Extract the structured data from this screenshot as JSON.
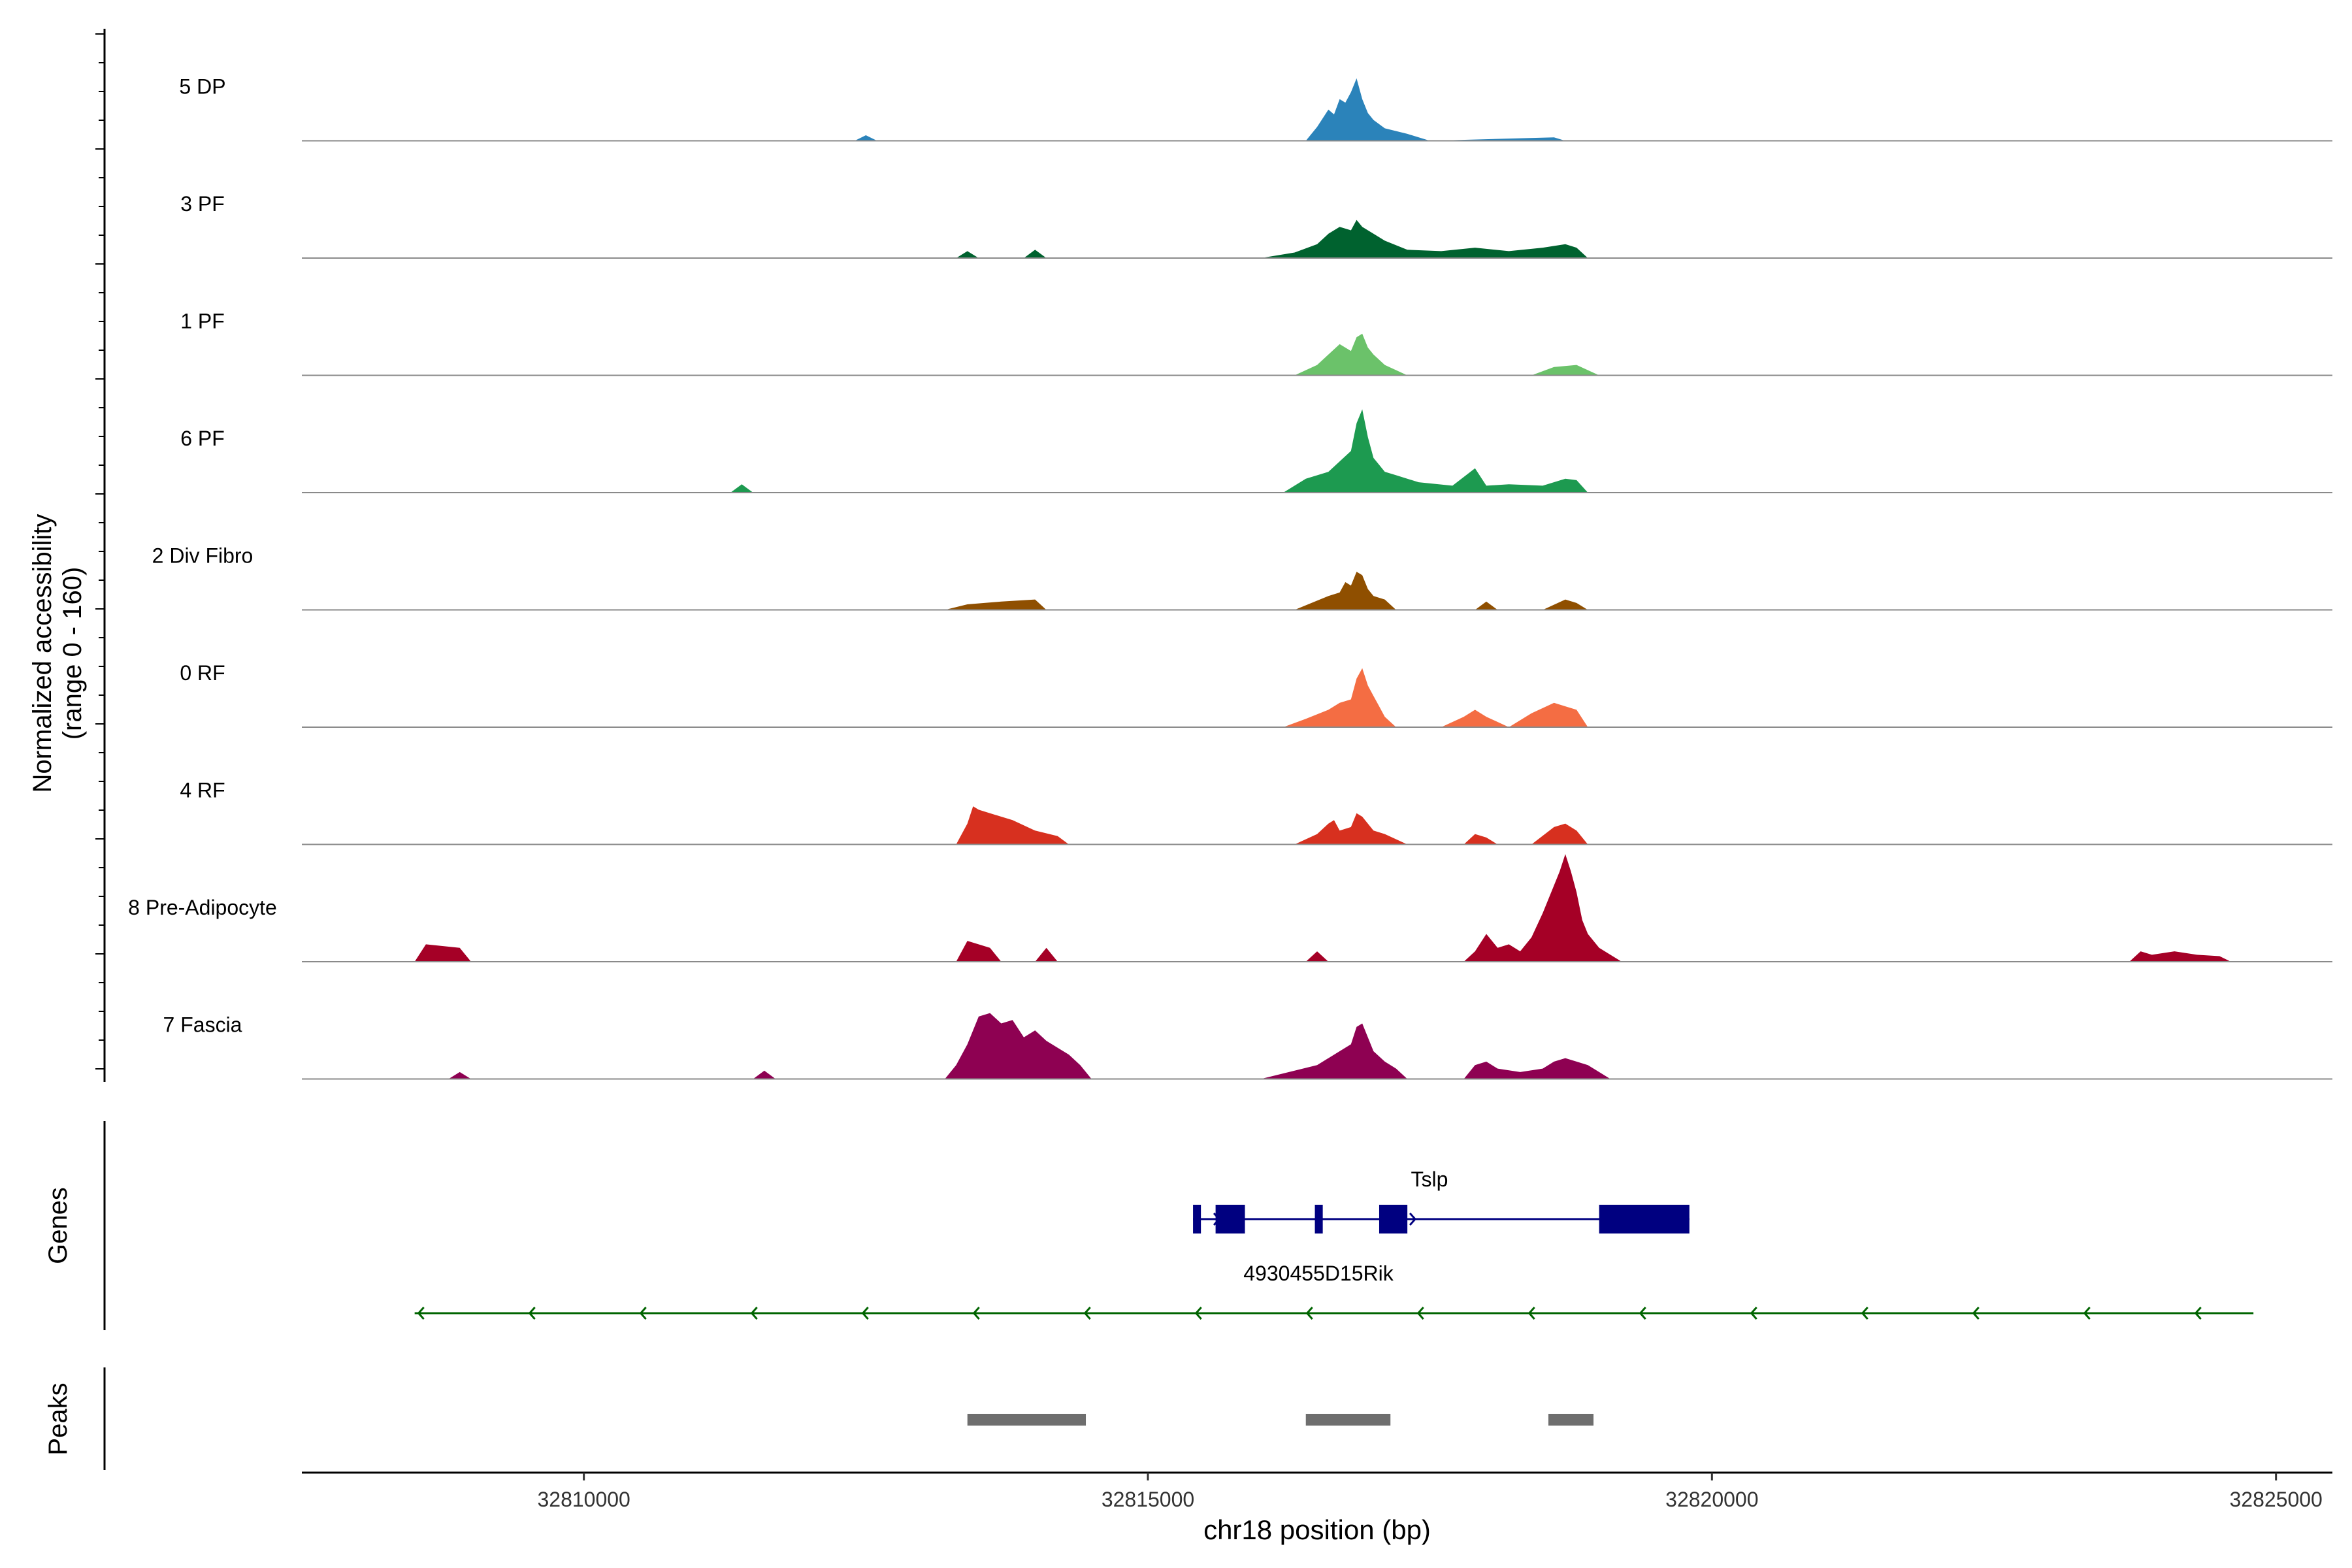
{
  "chart_data": {
    "type": "area",
    "panels": [
      "coverage",
      "genes",
      "peaks"
    ],
    "xlabel": "chr18 position (bp)",
    "xlim": [
      32807500,
      32825500
    ],
    "xticks": [
      32810000,
      32815000,
      32820000,
      32825000
    ],
    "xtick_labels": [
      "32810000",
      "32815000",
      "32820000",
      "32825000"
    ],
    "ylabel_line1": "Normalized accessibility",
    "ylabel_line2": "(range 0 - 160)",
    "ylim": [
      0,
      160
    ],
    "genes_label": "Genes",
    "peaks_label": "Peaks",
    "series": [
      {
        "name": "5 DP",
        "color": "#2b83ba",
        "x": [
          32812400,
          32812500,
          32812600,
          32816400,
          32816500,
          32816600,
          32816650,
          32816700,
          32816750,
          32816800,
          32816850,
          32816900,
          32816950,
          32817000,
          32817100,
          32817300,
          32817500,
          32818600,
          32818700
        ],
        "y": [
          0,
          8,
          0,
          0,
          20,
          45,
          38,
          60,
          55,
          70,
          90,
          60,
          40,
          30,
          18,
          10,
          0,
          5,
          0
        ]
      },
      {
        "name": "3 PF",
        "color": "#00622f",
        "x": [
          32813300,
          32813400,
          32813500,
          32813900,
          32814000,
          32814100,
          32816000,
          32816300,
          32816500,
          32816600,
          32816700,
          32816800,
          32816850,
          32816900,
          32817000,
          32817100,
          32817300,
          32817600,
          32817900,
          32818200,
          32818500,
          32818700,
          32818800,
          32818900
        ],
        "y": [
          0,
          10,
          0,
          0,
          12,
          0,
          0,
          8,
          20,
          35,
          45,
          40,
          55,
          45,
          35,
          25,
          12,
          10,
          15,
          10,
          15,
          20,
          15,
          0
        ]
      },
      {
        "name": "1 PF",
        "color": "#6bc26a",
        "x": [
          32816300,
          32816500,
          32816600,
          32816700,
          32816750,
          32816800,
          32816850,
          32816900,
          32816950,
          32817000,
          32817100,
          32817300,
          32818400,
          32818600,
          32818800,
          32819000
        ],
        "y": [
          0,
          15,
          30,
          45,
          40,
          35,
          55,
          60,
          40,
          30,
          15,
          0,
          0,
          12,
          15,
          0
        ]
      },
      {
        "name": "6 PF",
        "color": "#1d9a50",
        "x": [
          32811300,
          32811400,
          32811500,
          32816200,
          32816400,
          32816600,
          32816700,
          32816800,
          32816850,
          32816900,
          32816950,
          32817000,
          32817050,
          32817100,
          32817200,
          32817400,
          32817700,
          32817900,
          32818000,
          32818200,
          32818500,
          32818700,
          32818800,
          32818900
        ],
        "y": [
          0,
          12,
          0,
          0,
          20,
          30,
          45,
          60,
          100,
          120,
          80,
          50,
          40,
          30,
          25,
          15,
          10,
          35,
          10,
          12,
          10,
          20,
          18,
          0
        ]
      },
      {
        "name": "2 Div Fibro",
        "color": "#8f4f00",
        "x": [
          32813200,
          32813400,
          32813700,
          32814000,
          32814100,
          32816300,
          32816600,
          32816700,
          32816750,
          32816800,
          32816850,
          32816900,
          32816950,
          32817000,
          32817100,
          32817200,
          32817900,
          32818000,
          32818100,
          32818500,
          32818700,
          32818800,
          32818900
        ],
        "y": [
          0,
          8,
          12,
          15,
          0,
          0,
          20,
          25,
          40,
          35,
          55,
          50,
          30,
          20,
          15,
          0,
          0,
          12,
          0,
          0,
          15,
          10,
          0
        ]
      },
      {
        "name": "0 RF",
        "color": "#f46d43",
        "x": [
          32816200,
          32816400,
          32816600,
          32816700,
          32816800,
          32816850,
          32816900,
          32816950,
          32817000,
          32817050,
          32817100,
          32817200,
          32817600,
          32817800,
          32817900,
          32818000,
          32818200,
          32818400,
          32818600,
          32818700,
          32818800,
          32818900
        ],
        "y": [
          0,
          12,
          25,
          35,
          40,
          70,
          85,
          60,
          45,
          30,
          15,
          0,
          0,
          15,
          25,
          15,
          0,
          20,
          35,
          30,
          25,
          0
        ]
      },
      {
        "name": "4 RF",
        "color": "#d7301f",
        "x": [
          32813300,
          32813400,
          32813450,
          32813500,
          32813600,
          32813700,
          32813800,
          32814000,
          32814200,
          32814300,
          32816300,
          32816500,
          32816600,
          32816650,
          32816700,
          32816800,
          32816850,
          32816900,
          32817000,
          32817100,
          32817300,
          32817800,
          32817900,
          32818000,
          32818100,
          32818400,
          32818600,
          32818700,
          32818800,
          32818900
        ],
        "y": [
          0,
          30,
          55,
          50,
          45,
          40,
          35,
          20,
          12,
          0,
          0,
          15,
          30,
          35,
          20,
          25,
          45,
          40,
          20,
          15,
          0,
          0,
          15,
          10,
          0,
          0,
          25,
          30,
          20,
          0
        ]
      },
      {
        "name": "8 Pre-Adipocyte",
        "color": "#a50026",
        "x": [
          32808500,
          32808600,
          32808900,
          32809000,
          32813300,
          32813400,
          32813600,
          32813700,
          32814000,
          32814100,
          32814200,
          32816400,
          32816500,
          32816600,
          32817800,
          32817900,
          32818000,
          32818100,
          32818200,
          32818300,
          32818400,
          32818500,
          32818600,
          32818650,
          32818700,
          32818750,
          32818800,
          32818850,
          32818900,
          32819000,
          32819100,
          32819200,
          32823700,
          32823800,
          32823900,
          32824100,
          32824300,
          32824500,
          32824600
        ],
        "y": [
          0,
          25,
          20,
          0,
          0,
          30,
          20,
          0,
          0,
          20,
          0,
          0,
          15,
          0,
          0,
          15,
          40,
          20,
          25,
          15,
          35,
          70,
          110,
          130,
          155,
          130,
          100,
          60,
          40,
          20,
          10,
          0,
          0,
          15,
          10,
          15,
          10,
          8,
          0
        ]
      },
      {
        "name": "7 Fascia",
        "color": "#8e0152",
        "x": [
          32808800,
          32808900,
          32809000,
          32811500,
          32811600,
          32811700,
          32813200,
          32813300,
          32813400,
          32813500,
          32813600,
          32813700,
          32813800,
          32813900,
          32814000,
          32814100,
          32814200,
          32814300,
          32814400,
          32814500,
          32816000,
          32816300,
          32816500,
          32816600,
          32816700,
          32816800,
          32816850,
          32816900,
          32816950,
          32817000,
          32817100,
          32817200,
          32817300,
          32817800,
          32817900,
          32818000,
          32818100,
          32818300,
          32818500,
          32818600,
          32818700,
          32818800,
          32818900,
          32819000,
          32819100
        ],
        "y": [
          0,
          10,
          0,
          0,
          12,
          0,
          0,
          20,
          50,
          90,
          95,
          80,
          85,
          60,
          70,
          55,
          45,
          35,
          20,
          0,
          0,
          12,
          20,
          30,
          40,
          50,
          75,
          80,
          60,
          40,
          25,
          15,
          0,
          0,
          20,
          25,
          15,
          10,
          15,
          25,
          30,
          25,
          20,
          10,
          0
        ]
      }
    ],
    "genes": [
      {
        "name": "Tslp",
        "color": "#000080",
        "strand": "+",
        "start": 32815400,
        "end": 32819800,
        "exons": [
          [
            32815400,
            32815470
          ],
          [
            32815600,
            32815860
          ],
          [
            32816480,
            32816550
          ],
          [
            32817050,
            32817300
          ],
          [
            32819000,
            32819800
          ]
        ]
      },
      {
        "name": "4930455D15Rik",
        "color": "#006400",
        "strand": "-",
        "start": 32808500,
        "end": 32824800,
        "exons": []
      }
    ],
    "peaks": [
      [
        32813400,
        32814450
      ],
      [
        32816400,
        32817150
      ],
      [
        32818550,
        32818950
      ]
    ],
    "peak_color": "#6e6e6e"
  }
}
